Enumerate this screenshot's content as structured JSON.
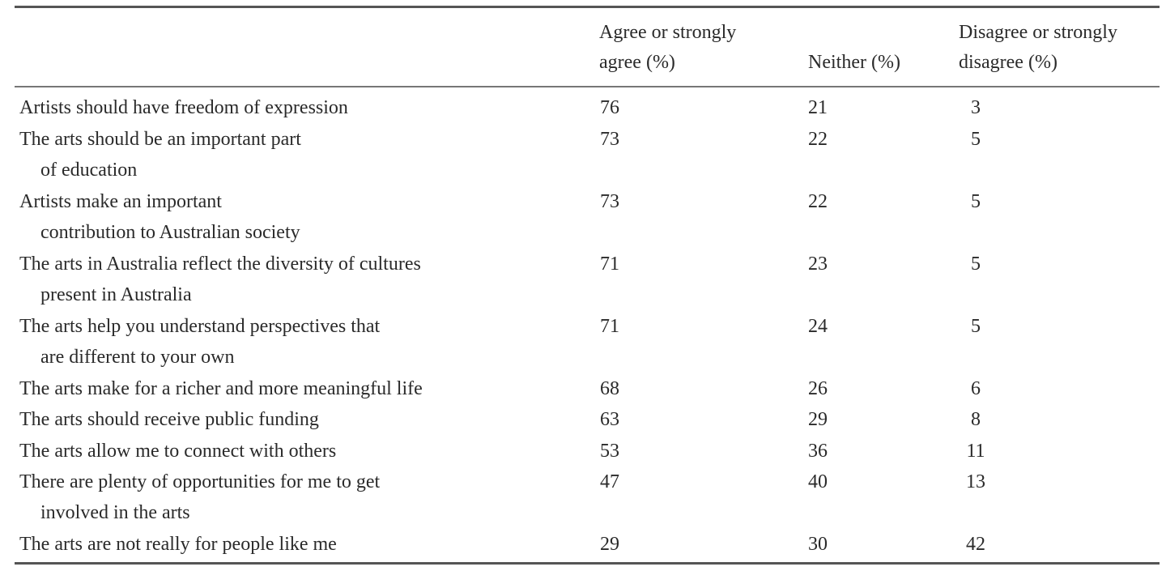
{
  "table": {
    "headers": {
      "statement": "",
      "agree": [
        "Agree or strongly",
        "agree (%)"
      ],
      "neither": "Neither (%)",
      "disagree": [
        "Disagree or strongly",
        "disagree (%)"
      ]
    },
    "rows": [
      {
        "statement": [
          "Artists should have freedom of expression"
        ],
        "agree": "76",
        "neither": "21",
        "disagree": "3"
      },
      {
        "statement": [
          "The arts should be an important part",
          "of education"
        ],
        "agree": "73",
        "neither": "22",
        "disagree": "5"
      },
      {
        "statement": [
          "Artists make an important",
          "contribution to Australian society"
        ],
        "agree": "73",
        "neither": "22",
        "disagree": "5"
      },
      {
        "statement": [
          "The arts in Australia reflect the diversity of cultures",
          "present in Australia"
        ],
        "agree": "71",
        "neither": "23",
        "disagree": "5"
      },
      {
        "statement": [
          "The arts help you understand perspectives that",
          "are different to your own"
        ],
        "agree": "71",
        "neither": "24",
        "disagree": "5"
      },
      {
        "statement": [
          "The arts make for a richer and more meaningful life"
        ],
        "agree": "68",
        "neither": "26",
        "disagree": "6"
      },
      {
        "statement": [
          "The arts should receive public funding"
        ],
        "agree": "63",
        "neither": "29",
        "disagree": "8"
      },
      {
        "statement": [
          "The arts allow me to connect with others"
        ],
        "agree": "53",
        "neither": "36",
        "disagree": "11"
      },
      {
        "statement": [
          "There are plenty of opportunities for me to get",
          "involved in the arts"
        ],
        "agree": "47",
        "neither": "40",
        "disagree": "13"
      },
      {
        "statement": [
          "The arts are not really for people like me"
        ],
        "agree": "29",
        "neither": "30",
        "disagree": "42"
      }
    ]
  }
}
